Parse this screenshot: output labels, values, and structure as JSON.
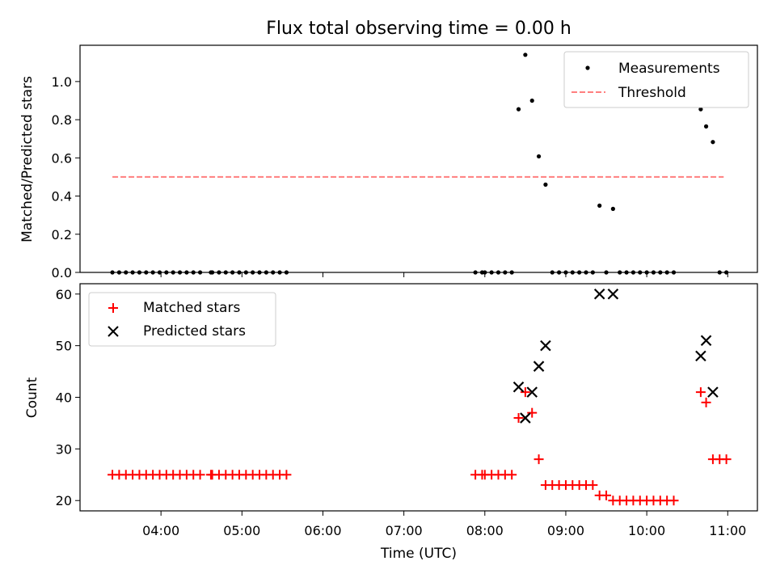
{
  "title": "Flux total observing time = 0.00 h",
  "chart_data": [
    {
      "type": "scatter",
      "ylabel": "Matched/Predicted stars",
      "xlabel": "",
      "ylim": [
        0,
        1.19
      ],
      "xlim": [
        "03:00",
        "11:22"
      ],
      "yticks": [
        0.0,
        0.2,
        0.4,
        0.6,
        0.8,
        1.0
      ],
      "ytick_labels": [
        "0.0",
        "0.2",
        "0.4",
        "0.6",
        "0.8",
        "1.0"
      ],
      "legend_position": "top-right",
      "series": [
        {
          "name": "Measurements",
          "marker": "dot",
          "color": "#000000",
          "points": [
            [
              "03:24",
              0.0
            ],
            [
              "03:29",
              0.0
            ],
            [
              "03:34",
              0.0
            ],
            [
              "03:39",
              0.0
            ],
            [
              "03:44",
              0.0
            ],
            [
              "03:49",
              0.0
            ],
            [
              "03:54",
              0.0
            ],
            [
              "03:59",
              0.0
            ],
            [
              "04:04",
              0.0
            ],
            [
              "04:09",
              0.0
            ],
            [
              "04:14",
              0.0
            ],
            [
              "04:19",
              0.0
            ],
            [
              "04:24",
              0.0
            ],
            [
              "04:29",
              0.0
            ],
            [
              "04:37",
              0.0
            ],
            [
              "04:38",
              0.0
            ],
            [
              "04:43",
              0.0
            ],
            [
              "04:48",
              0.0
            ],
            [
              "04:53",
              0.0
            ],
            [
              "04:58",
              0.0
            ],
            [
              "05:03",
              0.0
            ],
            [
              "05:08",
              0.0
            ],
            [
              "05:13",
              0.0
            ],
            [
              "05:18",
              0.0
            ],
            [
              "05:23",
              0.0
            ],
            [
              "05:28",
              0.0
            ],
            [
              "05:33",
              0.0
            ],
            [
              "07:53",
              0.0
            ],
            [
              "07:58",
              0.0
            ],
            [
              "08:00",
              0.0
            ],
            [
              "08:05",
              0.0
            ],
            [
              "08:10",
              0.0
            ],
            [
              "08:15",
              0.0
            ],
            [
              "08:20",
              0.0
            ],
            [
              "08:25",
              0.855
            ],
            [
              "08:30",
              1.14
            ],
            [
              "08:35",
              0.9
            ],
            [
              "08:40",
              0.608
            ],
            [
              "08:45",
              0.46
            ],
            [
              "08:50",
              0.0
            ],
            [
              "08:55",
              0.0
            ],
            [
              "09:00",
              0.0
            ],
            [
              "09:05",
              0.0
            ],
            [
              "09:10",
              0.0
            ],
            [
              "09:15",
              0.0
            ],
            [
              "09:20",
              0.0
            ],
            [
              "09:25",
              0.35
            ],
            [
              "09:30",
              0.0
            ],
            [
              "09:35",
              0.333
            ],
            [
              "09:40",
              0.0
            ],
            [
              "09:45",
              0.0
            ],
            [
              "09:50",
              0.0
            ],
            [
              "09:55",
              0.0
            ],
            [
              "10:00",
              0.0
            ],
            [
              "10:05",
              0.0
            ],
            [
              "10:10",
              0.0
            ],
            [
              "10:15",
              0.0
            ],
            [
              "10:20",
              0.0
            ],
            [
              "10:40",
              0.855
            ],
            [
              "10:44",
              0.765
            ],
            [
              "10:49",
              0.683
            ],
            [
              "10:54",
              0.0
            ],
            [
              "10:59",
              0.0
            ]
          ]
        },
        {
          "name": "Threshold",
          "marker": "dashed-line",
          "color": "#ff7f7f",
          "points": [
            [
              "03:24",
              0.5
            ],
            [
              "10:57",
              0.5
            ]
          ]
        }
      ]
    },
    {
      "type": "scatter",
      "ylabel": "Count",
      "xlabel": "Time (UTC)",
      "ylim": [
        18,
        62
      ],
      "xlim": [
        "03:00",
        "11:22"
      ],
      "yticks": [
        20,
        30,
        40,
        50,
        60
      ],
      "ytick_labels": [
        "20",
        "30",
        "40",
        "50",
        "60"
      ],
      "xticks": [
        "04:00",
        "05:00",
        "06:00",
        "07:00",
        "08:00",
        "09:00",
        "10:00",
        "11:00"
      ],
      "xtick_labels": [
        "04:00",
        "05:00",
        "06:00",
        "07:00",
        "08:00",
        "09:00",
        "10:00",
        "11:00"
      ],
      "legend_position": "top-left",
      "series": [
        {
          "name": "Matched stars",
          "marker": "plus",
          "color": "#ff0000",
          "points": [
            [
              "03:24",
              25
            ],
            [
              "03:29",
              25
            ],
            [
              "03:34",
              25
            ],
            [
              "03:39",
              25
            ],
            [
              "03:44",
              25
            ],
            [
              "03:49",
              25
            ],
            [
              "03:54",
              25
            ],
            [
              "03:59",
              25
            ],
            [
              "04:04",
              25
            ],
            [
              "04:09",
              25
            ],
            [
              "04:14",
              25
            ],
            [
              "04:19",
              25
            ],
            [
              "04:24",
              25
            ],
            [
              "04:29",
              25
            ],
            [
              "04:37",
              25
            ],
            [
              "04:38",
              25
            ],
            [
              "04:43",
              25
            ],
            [
              "04:48",
              25
            ],
            [
              "04:53",
              25
            ],
            [
              "04:58",
              25
            ],
            [
              "05:03",
              25
            ],
            [
              "05:08",
              25
            ],
            [
              "05:13",
              25
            ],
            [
              "05:18",
              25
            ],
            [
              "05:23",
              25
            ],
            [
              "05:28",
              25
            ],
            [
              "05:33",
              25
            ],
            [
              "07:53",
              25
            ],
            [
              "07:58",
              25
            ],
            [
              "08:00",
              25
            ],
            [
              "08:05",
              25
            ],
            [
              "08:10",
              25
            ],
            [
              "08:15",
              25
            ],
            [
              "08:20",
              25
            ],
            [
              "08:25",
              36
            ],
            [
              "08:30",
              41
            ],
            [
              "08:35",
              37
            ],
            [
              "08:40",
              28
            ],
            [
              "08:45",
              23
            ],
            [
              "08:50",
              23
            ],
            [
              "08:55",
              23
            ],
            [
              "09:00",
              23
            ],
            [
              "09:05",
              23
            ],
            [
              "09:10",
              23
            ],
            [
              "09:15",
              23
            ],
            [
              "09:20",
              23
            ],
            [
              "09:25",
              21
            ],
            [
              "09:30",
              21
            ],
            [
              "09:35",
              20
            ],
            [
              "09:40",
              20
            ],
            [
              "09:45",
              20
            ],
            [
              "09:50",
              20
            ],
            [
              "09:55",
              20
            ],
            [
              "10:00",
              20
            ],
            [
              "10:05",
              20
            ],
            [
              "10:10",
              20
            ],
            [
              "10:15",
              20
            ],
            [
              "10:20",
              20
            ],
            [
              "10:40",
              41
            ],
            [
              "10:44",
              39
            ],
            [
              "10:49",
              28
            ],
            [
              "10:54",
              28
            ],
            [
              "10:59",
              28
            ]
          ]
        },
        {
          "name": "Predicted stars",
          "marker": "x",
          "color": "#000000",
          "points": [
            [
              "08:25",
              42
            ],
            [
              "08:30",
              36
            ],
            [
              "08:35",
              41
            ],
            [
              "08:40",
              46
            ],
            [
              "08:45",
              50
            ],
            [
              "09:25",
              60
            ],
            [
              "09:35",
              60
            ],
            [
              "10:40",
              48
            ],
            [
              "10:44",
              51
            ],
            [
              "10:49",
              41
            ]
          ]
        }
      ]
    }
  ]
}
